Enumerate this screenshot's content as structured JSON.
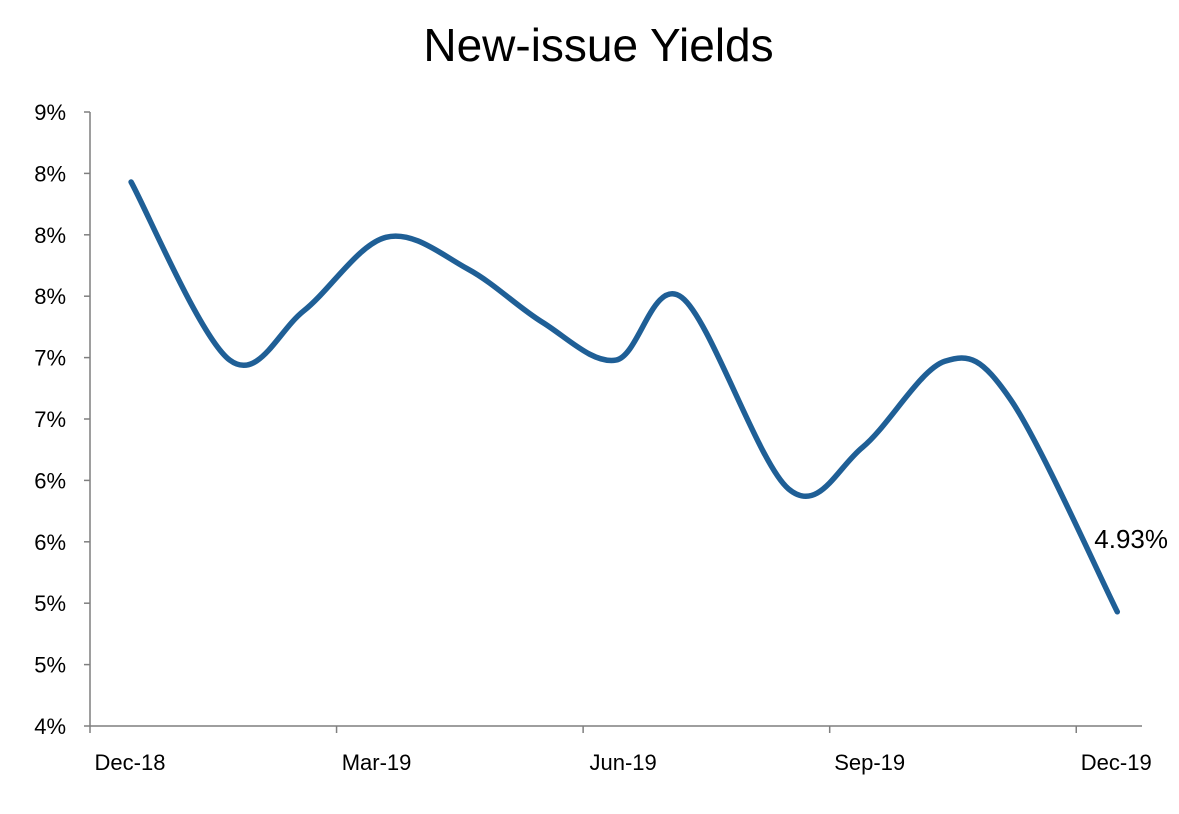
{
  "chart_data": {
    "type": "line",
    "title": "New-issue Yields",
    "xlabel": "",
    "ylabel": "",
    "ylim": [
      4.0,
      9.0
    ],
    "y_tick_values": [
      4.0,
      4.5,
      5.0,
      5.5,
      6.0,
      6.5,
      7.0,
      7.5,
      8.0,
      8.5,
      9.0
    ],
    "y_tick_labels": [
      "4%",
      "5%",
      "5%",
      "6%",
      "6%",
      "7%",
      "7%",
      "8%",
      "8%",
      "8%",
      "9%"
    ],
    "x_tick_labels": [
      "Dec-18",
      "Mar-19",
      "Jun-19",
      "Sep-19",
      "Dec-19"
    ],
    "x_tick_positions": [
      0,
      3,
      6,
      9,
      12
    ],
    "grid": false,
    "legend": "none",
    "line_color": "#1f5f96",
    "series": [
      {
        "x": [
          0.5,
          1.7,
          2.6,
          3.6,
          4.6,
          5.5,
          6.4,
          7.2,
          8.5,
          9.4,
          10.4,
          11.2,
          12.5
        ],
        "values": [
          8.43,
          6.98,
          7.38,
          7.98,
          7.72,
          7.29,
          6.98,
          7.49,
          5.93,
          6.27,
          6.97,
          6.66,
          4.93
        ]
      }
    ],
    "annotations": [
      {
        "text": "4.93%"
      }
    ]
  }
}
